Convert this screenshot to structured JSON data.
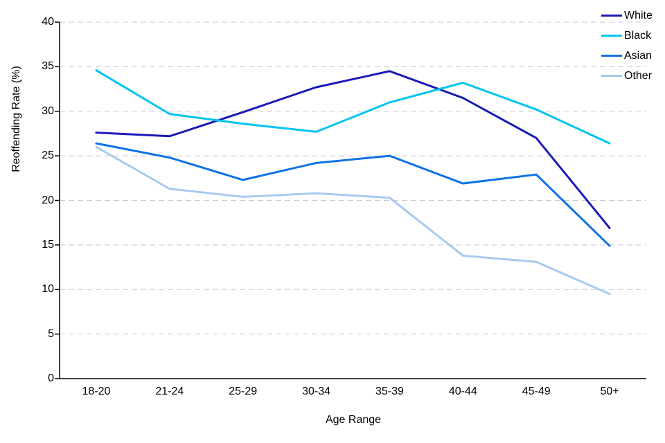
{
  "chart_data": {
    "type": "line",
    "title": "",
    "xlabel": "Age Range",
    "ylabel": "Reoffending Rate (%)",
    "categories": [
      "18-20",
      "21-24",
      "25-29",
      "30-34",
      "35-39",
      "40-44",
      "45-49",
      "50+"
    ],
    "series": [
      {
        "name": "White",
        "color": "#1A1AB8",
        "values": [
          27.6,
          27.2,
          29.9,
          32.7,
          34.5,
          31.5,
          27.0,
          16.9
        ]
      },
      {
        "name": "Black",
        "color": "#00C5EE",
        "values": [
          34.6,
          29.7,
          28.6,
          27.7,
          31.0,
          33.2,
          30.2,
          26.4
        ]
      },
      {
        "name": "Asian",
        "color": "#0E72E6",
        "values": [
          26.4,
          24.8,
          22.3,
          24.2,
          25.0,
          21.9,
          22.9,
          14.9
        ]
      },
      {
        "name": "Other",
        "color": "#A6CAF0",
        "values": [
          26.0,
          21.3,
          20.4,
          20.8,
          20.3,
          13.8,
          13.1,
          9.5
        ]
      }
    ],
    "ylim": [
      0,
      40
    ],
    "yticks": [
      0,
      5,
      10,
      15,
      20,
      25,
      30,
      35,
      40
    ],
    "grid": "horizontal-dashed",
    "legend_position": "top-right",
    "legend_labels": [
      "White",
      "Black",
      "Asian",
      "Other"
    ]
  },
  "colors": {
    "background": "#FFFFFF",
    "axis": "#000000",
    "grid": "#C9C9C9",
    "text": "#000000"
  }
}
